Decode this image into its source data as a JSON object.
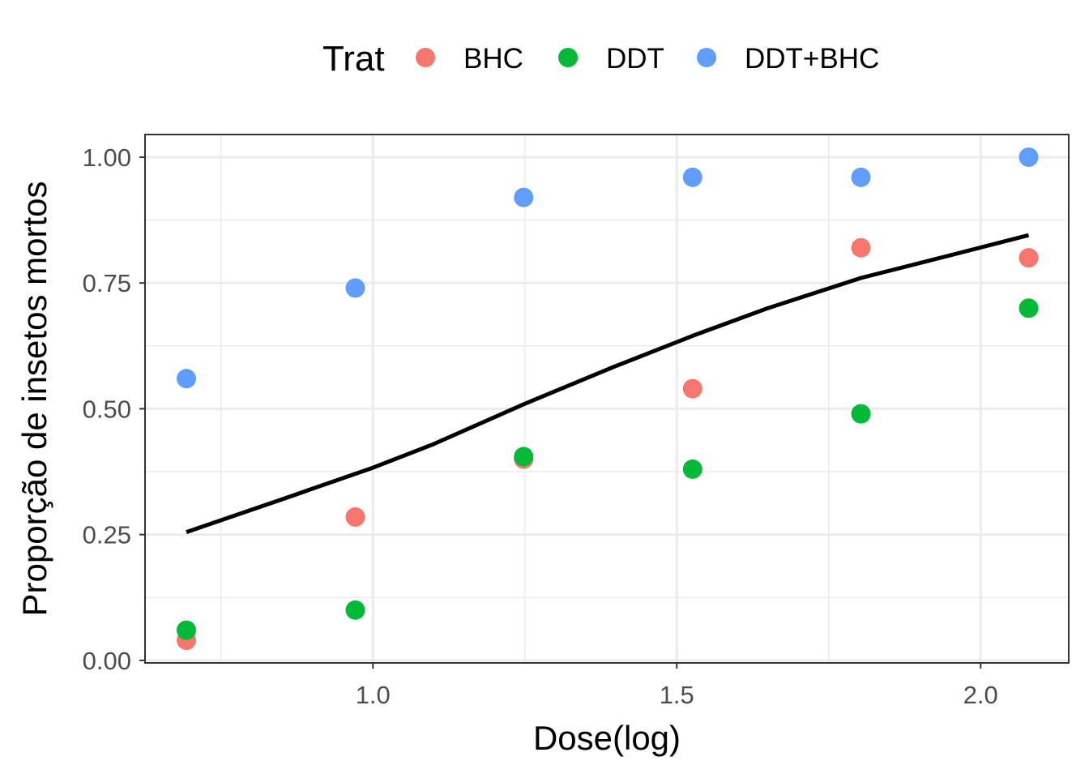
{
  "chart_data": {
    "type": "scatter",
    "xlabel": "Dose(log)",
    "ylabel": "Proporção de insetos mortos",
    "xlim": [
      0.625,
      2.145
    ],
    "ylim": [
      -0.005,
      1.045
    ],
    "x_ticks": [
      1.0,
      1.5,
      2.0
    ],
    "x_tick_labels": [
      "1.0",
      "1.5",
      "2.0"
    ],
    "x_minor_ticks": [
      0.75,
      1.25,
      1.75
    ],
    "y_ticks": [
      0.0,
      0.25,
      0.5,
      0.75,
      1.0
    ],
    "y_tick_labels": [
      "0.00",
      "0.25",
      "0.50",
      "0.75",
      "1.00"
    ],
    "y_minor_ticks": [
      0.125,
      0.375,
      0.625,
      0.875
    ],
    "grid": true,
    "legend": {
      "title": "Trat",
      "position": "top"
    },
    "series": [
      {
        "name": "BHC",
        "color": "#F8766D",
        "points": [
          {
            "x": 0.693,
            "y": 0.04
          },
          {
            "x": 0.971,
            "y": 0.285
          },
          {
            "x": 1.248,
            "y": 0.4
          },
          {
            "x": 1.526,
            "y": 0.54
          },
          {
            "x": 1.803,
            "y": 0.82
          },
          {
            "x": 2.079,
            "y": 0.8
          }
        ]
      },
      {
        "name": "DDT",
        "color": "#00BA38",
        "points": [
          {
            "x": 0.693,
            "y": 0.06
          },
          {
            "x": 0.971,
            "y": 0.1
          },
          {
            "x": 1.248,
            "y": 0.405
          },
          {
            "x": 1.526,
            "y": 0.38
          },
          {
            "x": 1.803,
            "y": 0.49
          },
          {
            "x": 2.079,
            "y": 0.7
          }
        ]
      },
      {
        "name": "DDT+BHC",
        "color": "#619CFF",
        "points": [
          {
            "x": 0.693,
            "y": 0.56
          },
          {
            "x": 0.971,
            "y": 0.74
          },
          {
            "x": 1.248,
            "y": 0.92
          },
          {
            "x": 1.526,
            "y": 0.96
          },
          {
            "x": 1.803,
            "y": 0.96
          },
          {
            "x": 2.079,
            "y": 1.0
          }
        ]
      }
    ],
    "fit_line": {
      "color": "#000000",
      "points": [
        {
          "x": 0.693,
          "y": 0.255
        },
        {
          "x": 0.85,
          "y": 0.32
        },
        {
          "x": 1.0,
          "y": 0.383
        },
        {
          "x": 1.1,
          "y": 0.43
        },
        {
          "x": 1.25,
          "y": 0.51
        },
        {
          "x": 1.4,
          "y": 0.585
        },
        {
          "x": 1.526,
          "y": 0.645
        },
        {
          "x": 1.65,
          "y": 0.7
        },
        {
          "x": 1.803,
          "y": 0.76
        },
        {
          "x": 1.95,
          "y": 0.805
        },
        {
          "x": 2.079,
          "y": 0.845
        }
      ]
    }
  }
}
